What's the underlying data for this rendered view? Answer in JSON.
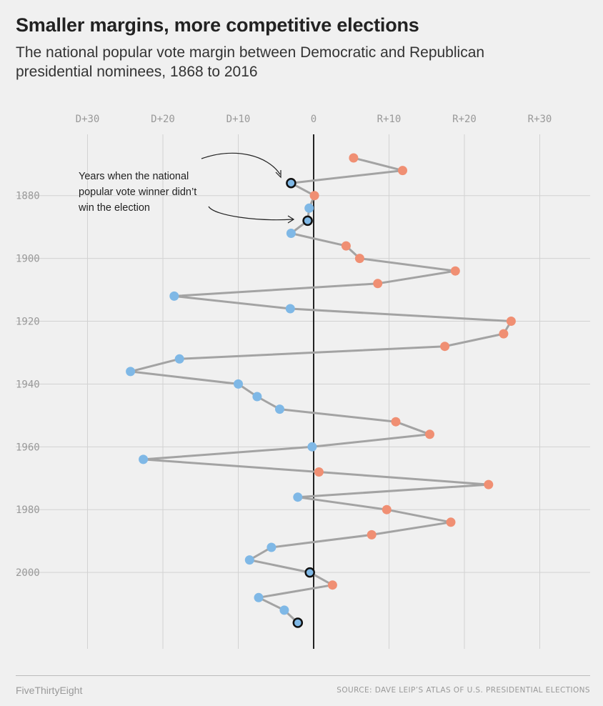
{
  "chart_data": {
    "type": "line",
    "title": "Smaller margins, more competitive elections",
    "subtitle": "The national popular vote margin between Democratic and Republican presidential nominees, 1868 to 2016",
    "x_ticks": [
      "D+30",
      "D+20",
      "D+10",
      "0",
      "R+10",
      "R+20",
      "R+30"
    ],
    "y_ticks": [
      "1880",
      "1900",
      "1920",
      "1940",
      "1960",
      "1980",
      "2000"
    ],
    "xlim": [
      -30,
      30
    ],
    "ylim": [
      1868,
      2016
    ],
    "grid": true,
    "colors": {
      "democratic": "#7fb8e6",
      "republican": "#f08f73",
      "line": "#a3a3a3",
      "zero_line": "#222222"
    },
    "annotation": "Years when the national popular vote winner didn't win the election",
    "annotation_lines": [
      "Years when the national",
      "popular vote winner didn’t",
      "win the election"
    ],
    "points": [
      {
        "year": 1868,
        "margin": 5.3,
        "party": "R",
        "split": false
      },
      {
        "year": 1872,
        "margin": 11.8,
        "party": "R",
        "split": false
      },
      {
        "year": 1876,
        "margin": -3.0,
        "party": "D",
        "split": true
      },
      {
        "year": 1880,
        "margin": 0.1,
        "party": "R",
        "split": false
      },
      {
        "year": 1884,
        "margin": -0.6,
        "party": "D",
        "split": false
      },
      {
        "year": 1888,
        "margin": -0.8,
        "party": "D",
        "split": true
      },
      {
        "year": 1892,
        "margin": -3.0,
        "party": "D",
        "split": false
      },
      {
        "year": 1896,
        "margin": 4.3,
        "party": "R",
        "split": false
      },
      {
        "year": 1900,
        "margin": 6.1,
        "party": "R",
        "split": false
      },
      {
        "year": 1904,
        "margin": 18.8,
        "party": "R",
        "split": false
      },
      {
        "year": 1908,
        "margin": 8.5,
        "party": "R",
        "split": false
      },
      {
        "year": 1912,
        "margin": -18.5,
        "party": "D",
        "split": false
      },
      {
        "year": 1916,
        "margin": -3.1,
        "party": "D",
        "split": false
      },
      {
        "year": 1920,
        "margin": 26.2,
        "party": "R",
        "split": false
      },
      {
        "year": 1924,
        "margin": 25.2,
        "party": "R",
        "split": false
      },
      {
        "year": 1928,
        "margin": 17.4,
        "party": "R",
        "split": false
      },
      {
        "year": 1932,
        "margin": -17.8,
        "party": "D",
        "split": false
      },
      {
        "year": 1936,
        "margin": -24.3,
        "party": "D",
        "split": false
      },
      {
        "year": 1940,
        "margin": -10.0,
        "party": "D",
        "split": false
      },
      {
        "year": 1944,
        "margin": -7.5,
        "party": "D",
        "split": false
      },
      {
        "year": 1948,
        "margin": -4.5,
        "party": "D",
        "split": false
      },
      {
        "year": 1952,
        "margin": 10.9,
        "party": "R",
        "split": false
      },
      {
        "year": 1956,
        "margin": 15.4,
        "party": "R",
        "split": false
      },
      {
        "year": 1960,
        "margin": -0.2,
        "party": "D",
        "split": false
      },
      {
        "year": 1964,
        "margin": -22.6,
        "party": "D",
        "split": false
      },
      {
        "year": 1968,
        "margin": 0.7,
        "party": "R",
        "split": false
      },
      {
        "year": 1972,
        "margin": 23.2,
        "party": "R",
        "split": false
      },
      {
        "year": 1976,
        "margin": -2.1,
        "party": "D",
        "split": false
      },
      {
        "year": 1980,
        "margin": 9.7,
        "party": "R",
        "split": false
      },
      {
        "year": 1984,
        "margin": 18.2,
        "party": "R",
        "split": false
      },
      {
        "year": 1988,
        "margin": 7.7,
        "party": "R",
        "split": false
      },
      {
        "year": 1992,
        "margin": -5.6,
        "party": "D",
        "split": false
      },
      {
        "year": 1996,
        "margin": -8.5,
        "party": "D",
        "split": false
      },
      {
        "year": 2000,
        "margin": -0.5,
        "party": "D",
        "split": true
      },
      {
        "year": 2004,
        "margin": 2.5,
        "party": "R",
        "split": false
      },
      {
        "year": 2008,
        "margin": -7.3,
        "party": "D",
        "split": false
      },
      {
        "year": 2012,
        "margin": -3.9,
        "party": "D",
        "split": false
      },
      {
        "year": 2016,
        "margin": -2.1,
        "party": "D",
        "split": true
      }
    ]
  },
  "footer": {
    "brand": "FiveThirtyEight",
    "source": "SOURCE: DAVE LEIP’S ATLAS OF U.S. PRESIDENTIAL ELECTIONS"
  }
}
